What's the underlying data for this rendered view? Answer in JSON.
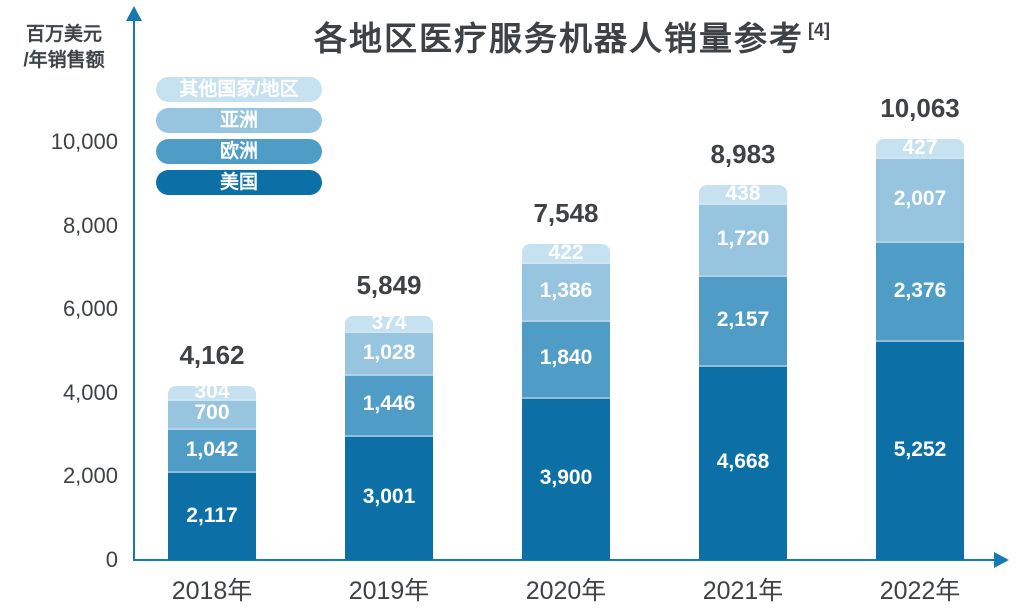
{
  "title": {
    "text": "各地区医疗服务机器人销量参考",
    "sup": "[4]"
  },
  "y_axis": {
    "unit_label_line1": "百万美元",
    "unit_label_line2": "/年销售额",
    "tick_values": [
      0,
      2000,
      4000,
      6000,
      8000,
      10000
    ]
  },
  "legend": [
    {
      "key": "other-regions",
      "label": "其他国家/地区",
      "color": "#c6e1ef"
    },
    {
      "key": "asia",
      "label": "亚洲",
      "color": "#97c5df"
    },
    {
      "key": "europe",
      "label": "欧洲",
      "color": "#4f9dc6"
    },
    {
      "key": "us",
      "label": "美国",
      "color": "#0c70a6"
    }
  ],
  "colors": {
    "axis": "#1879b0",
    "text_dark": "#3f4245",
    "label_on_bar": "#ffffff"
  },
  "chart_data": {
    "type": "bar",
    "stacked": true,
    "title": "各地区医疗服务机器人销量参考 [4]",
    "ylabel": "百万美元/年销售额",
    "ylim": [
      0,
      10000
    ],
    "grid": false,
    "legend_position": "top-left",
    "categories": [
      "2018年",
      "2019年",
      "2020年",
      "2021年",
      "2022年"
    ],
    "series": [
      {
        "key": "us",
        "name": "美国",
        "color": "#0c70a6",
        "values": [
          2117,
          3001,
          3900,
          4668,
          5252
        ]
      },
      {
        "key": "europe",
        "name": "欧洲",
        "color": "#4f9dc6",
        "values": [
          1042,
          1446,
          1840,
          2157,
          2376
        ]
      },
      {
        "key": "asia",
        "name": "亚洲",
        "color": "#97c5df",
        "values": [
          700,
          1028,
          1386,
          1720,
          2007
        ]
      },
      {
        "key": "other-regions",
        "name": "其他国家/地区",
        "color": "#c6e1ef",
        "values": [
          304,
          374,
          422,
          438,
          427
        ]
      }
    ],
    "totals": [
      4162,
      5849,
      7548,
      8983,
      10063
    ]
  }
}
